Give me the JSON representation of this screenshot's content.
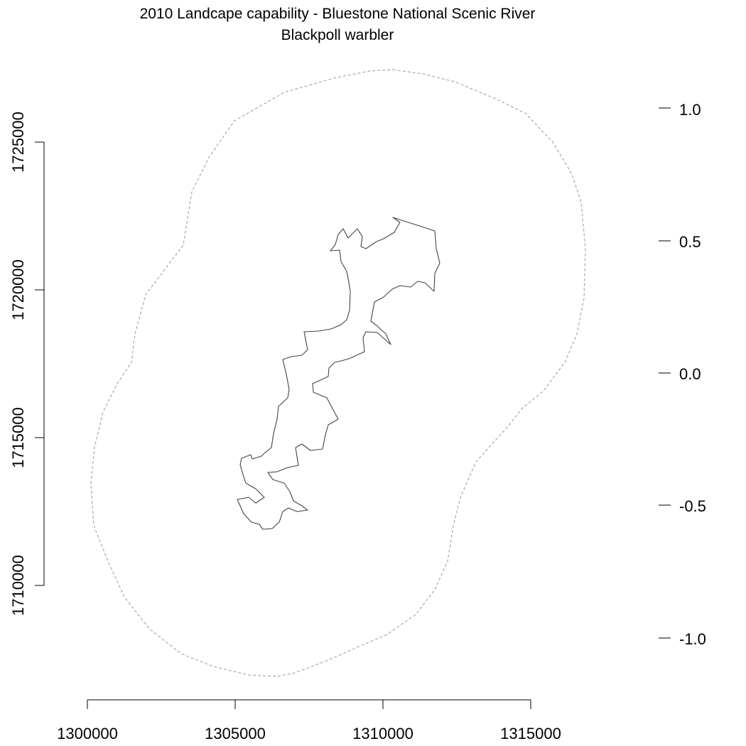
{
  "title": "2010 Landcape capability - Bluestone National Scenic River",
  "subtitle": "Blackpoll warbler",
  "map_data": {
    "type": "map",
    "x_axis": {
      "side": "bottom",
      "ticks": [
        "1300000",
        "1305000",
        "1310000",
        "1315000"
      ],
      "range": [
        1300000,
        1315000
      ]
    },
    "y_axis": {
      "side": "left",
      "ticks": [
        "1710000",
        "1715000",
        "1720000",
        "1725000"
      ],
      "range": [
        1710000,
        1725000
      ]
    },
    "legend_scale": {
      "side": "right",
      "ticks": [
        "1.0",
        "0.5",
        "0.0",
        "-0.5",
        "-1.0"
      ]
    },
    "layers": [
      {
        "name": "park-boundary",
        "style": "solid",
        "color": "#444444"
      },
      {
        "name": "buffer-boundary",
        "style": "dashed",
        "color": "#a0a0a0"
      }
    ]
  }
}
